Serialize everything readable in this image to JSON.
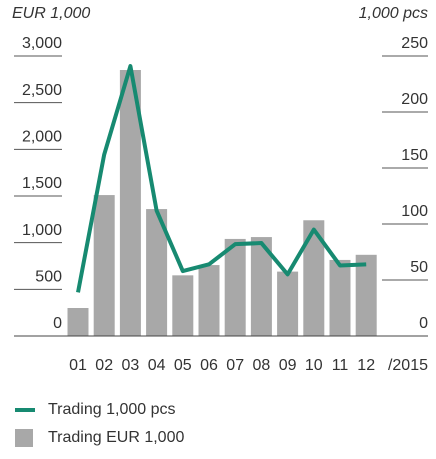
{
  "chart_data": {
    "type": "bar",
    "ylabel": "EUR 1,000",
    "y2label": "1,000 pcs",
    "categories": [
      "01",
      "02",
      "03",
      "04",
      "05",
      "06",
      "07",
      "08",
      "09",
      "10",
      "11",
      "12"
    ],
    "annotation": "/2015",
    "series": [
      {
        "name": "Trading 1,000 pcs",
        "type": "line",
        "axis": "y2",
        "color": "#178a71",
        "values": [
          39,
          162,
          241,
          112,
          58,
          64,
          82,
          83,
          55,
          95,
          63,
          64
        ]
      },
      {
        "name": "Trading EUR 1,000",
        "type": "bar",
        "axis": "y",
        "color": "#a8a8a8",
        "values": [
          300,
          1510,
          2850,
          1360,
          650,
          760,
          1040,
          1060,
          690,
          1240,
          815,
          870
        ]
      }
    ],
    "ylim": [
      0,
      3000
    ],
    "yticks": [
      0,
      {
        "value": 500,
        "label": "500"
      },
      {
        "value": 1000,
        "label": "1,000"
      },
      {
        "value": 1500,
        "label": "1,500"
      },
      {
        "value": 2000,
        "label": "2,000"
      },
      {
        "value": 2500,
        "label": "2,500"
      },
      {
        "value": 3000,
        "label": "3,000"
      }
    ],
    "y2lim": [
      0,
      250
    ],
    "y2ticks": [
      0,
      50,
      100,
      150,
      200,
      250
    ]
  }
}
